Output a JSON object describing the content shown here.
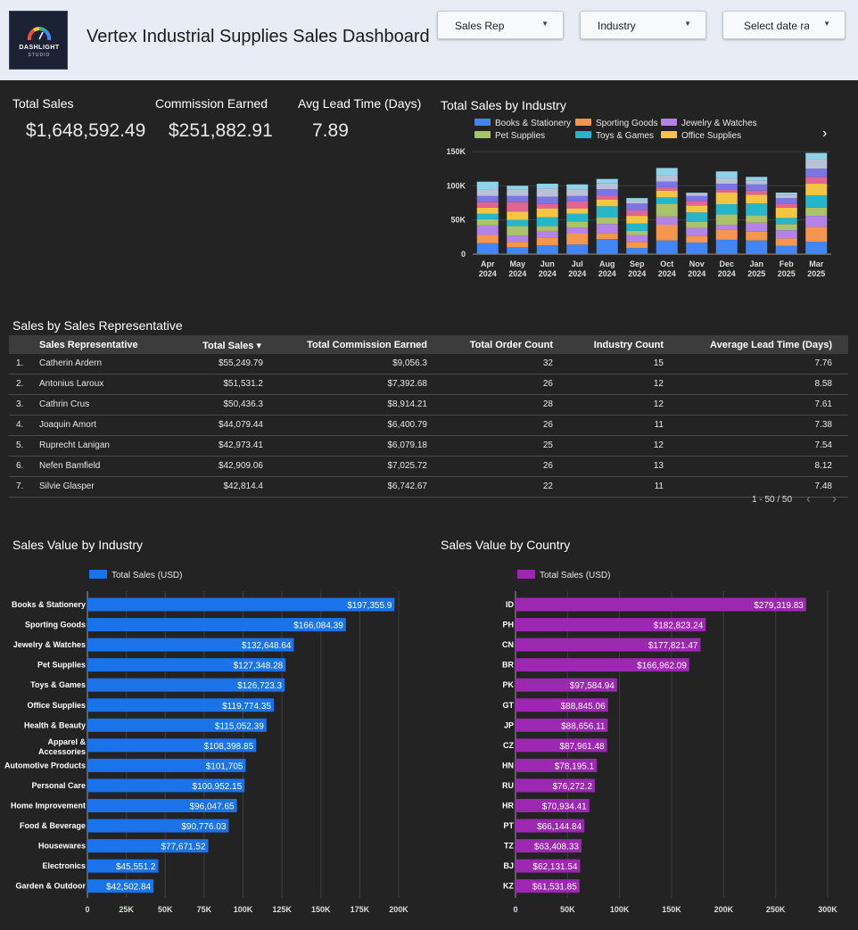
{
  "header": {
    "logo_line1": "DASHLIGHT",
    "logo_line2": "STUDIO",
    "title": "Vertex Industrial Supplies Sales Dashboard",
    "filters": [
      {
        "label": "Sales Rep"
      },
      {
        "label": "Industry"
      },
      {
        "label": "Select date range"
      }
    ]
  },
  "kpis": [
    {
      "label": "Total Sales",
      "value": "$1,648,592.49"
    },
    {
      "label": "Commission Earned",
      "value": "$251,882.91"
    },
    {
      "label": "Avg Lead Time (Days)",
      "value": "7.89"
    }
  ],
  "stacked_chart": {
    "title": "Total Sales by Industry",
    "legend": [
      {
        "name": "Books & Stationery",
        "color": "#4285f4"
      },
      {
        "name": "Sporting Goods",
        "color": "#f5964f"
      },
      {
        "name": "Jewelry & Watches",
        "color": "#b582e8"
      },
      {
        "name": "Pet Supplies",
        "color": "#aac26a"
      },
      {
        "name": "Toys & Games",
        "color": "#26b6c9"
      },
      {
        "name": "Office Supplies",
        "color": "#f4c542"
      }
    ],
    "legend_next_icon": "›"
  },
  "table": {
    "title": "Sales by Sales Representative",
    "columns": [
      "Sales Representative",
      "Total Sales ▾",
      "Total Commission Earned",
      "Total Order Count",
      "Industry Count",
      "Average Lead Time (Days)"
    ],
    "rows": [
      [
        "1.",
        "Catherin Ardern",
        "$55,249.79",
        "$9,056.3",
        "32",
        "15",
        "7.76"
      ],
      [
        "2.",
        "Antonius Laroux",
        "$51,531.2",
        "$7,392.68",
        "26",
        "12",
        "8.58"
      ],
      [
        "3.",
        "Cathrin Crus",
        "$50,436.3",
        "$8,914.21",
        "28",
        "12",
        "7.61"
      ],
      [
        "4.",
        "Joaquin Amort",
        "$44,079.44",
        "$6,400.79",
        "26",
        "11",
        "7.38"
      ],
      [
        "5.",
        "Ruprecht Lanigan",
        "$42,973.41",
        "$6,079.18",
        "25",
        "12",
        "7.54"
      ],
      [
        "6.",
        "Nefen Bamfield",
        "$42,909.06",
        "$7,025.72",
        "26",
        "13",
        "8.12"
      ],
      [
        "7.",
        "Silvie Glasper",
        "$42,814.4",
        "$6,742.67",
        "22",
        "11",
        "7.48"
      ]
    ],
    "pagination": "1 - 50 / 50",
    "prev_icon": "‹",
    "next_icon": "›"
  },
  "chart_data": [
    {
      "type": "bar",
      "stacked": true,
      "title": "Total Sales by Industry",
      "categories": [
        "Apr 2024",
        "May 2024",
        "Jun 2024",
        "Jul 2024",
        "Aug 2024",
        "Sep 2024",
        "Oct 2024",
        "Nov 2024",
        "Dec 2024",
        "Jan 2025",
        "Feb 2025",
        "Mar 2025"
      ],
      "yticks": [
        "0",
        "50K",
        "100K",
        "150K"
      ],
      "ylim": [
        0,
        150000
      ],
      "series": [
        {
          "name": "Books & Stationery",
          "color": "#4285f4",
          "values": [
            16000,
            10000,
            13000,
            14000,
            22000,
            9000,
            20000,
            17000,
            21000,
            20000,
            12000,
            18000
          ]
        },
        {
          "name": "Sporting Goods",
          "color": "#f5964f",
          "values": [
            12000,
            8000,
            11000,
            16000,
            9000,
            9000,
            23000,
            10000,
            15000,
            13000,
            11000,
            22000
          ]
        },
        {
          "name": "Jewelry & Watches",
          "color": "#b582e8",
          "values": [
            14000,
            9000,
            10000,
            9000,
            13000,
            10000,
            12000,
            11000,
            7000,
            13000,
            12000,
            16000
          ]
        },
        {
          "name": "Pet Supplies",
          "color": "#aac26a",
          "values": [
            9000,
            14000,
            7000,
            9000,
            10000,
            6000,
            19000,
            9000,
            15000,
            11000,
            9000,
            12000
          ]
        },
        {
          "name": "Toys & Games",
          "color": "#26b6c9",
          "values": [
            8000,
            9000,
            13000,
            11000,
            16000,
            11000,
            9000,
            14000,
            15000,
            17000,
            9000,
            18000
          ]
        },
        {
          "name": "Office Supplies",
          "color": "#f4c542",
          "values": [
            9000,
            12000,
            13000,
            8000,
            10000,
            11000,
            10000,
            10000,
            17000,
            13000,
            15000,
            17000
          ]
        },
        {
          "name": "",
          "color": "#e06591",
          "values": [
            8000,
            14000,
            7000,
            10000,
            6000,
            8000,
            5000,
            7000,
            5000,
            6000,
            6000,
            10000
          ]
        },
        {
          "name": "",
          "color": "#7b75e6",
          "values": [
            9000,
            9000,
            10000,
            8000,
            9000,
            10000,
            8000,
            7000,
            8000,
            9000,
            8000,
            12000
          ]
        },
        {
          "name": "",
          "color": "#b8c1d6",
          "values": [
            9000,
            10000,
            12000,
            10000,
            9000,
            5000,
            10000,
            4000,
            8000,
            6000,
            5000,
            14000
          ]
        },
        {
          "name": "",
          "color": "#8dd3ec",
          "values": [
            12000,
            5000,
            7000,
            7000,
            6000,
            3000,
            10000,
            1000,
            10000,
            5000,
            3000,
            9000
          ]
        }
      ]
    },
    {
      "type": "bar",
      "orientation": "horizontal",
      "title": "Sales Value by Industry",
      "legend": [
        "Total Sales (USD)"
      ],
      "color": "#1a73e8",
      "categories": [
        "Books & Stationery",
        "Sporting Goods",
        "Jewelry & Watches",
        "Pet Supplies",
        "Toys & Games",
        "Office Supplies",
        "Health & Beauty",
        "Apparel & Accessories",
        "Automotive Products",
        "Personal Care",
        "Home Improvement",
        "Food & Beverage",
        "Housewares",
        "Electronics",
        "Garden & Outdoor"
      ],
      "values": [
        197355.9,
        166084.39,
        132648.64,
        127348.28,
        126723.3,
        119774.35,
        115052.39,
        108398.85,
        101705,
        100952.15,
        96047.65,
        90776.03,
        77671.52,
        45551.2,
        42502.84
      ],
      "value_labels": [
        "$197,355.9",
        "$166,084.39",
        "$132,648.64",
        "$127,348.28",
        "$126,723.3",
        "$119,774.35",
        "$115,052.39",
        "$108,398.85",
        "$101,705",
        "$100,952.15",
        "$96,047.65",
        "$90,776.03",
        "$77,671.52",
        "$45,551.2",
        "$42,502.84"
      ],
      "xticks": [
        "0",
        "25K",
        "50K",
        "75K",
        "100K",
        "125K",
        "150K",
        "175K",
        "200K"
      ],
      "xlim": [
        0,
        200000
      ]
    },
    {
      "type": "bar",
      "orientation": "horizontal",
      "title": "Sales Value by Country",
      "legend": [
        "Total Sales (USD)"
      ],
      "color": "#9c27b0",
      "categories": [
        "ID",
        "PH",
        "CN",
        "BR",
        "PK",
        "GT",
        "JP",
        "CZ",
        "HN",
        "RU",
        "HR",
        "PT",
        "TZ",
        "BJ",
        "KZ"
      ],
      "values": [
        279319.83,
        182823.24,
        177821.47,
        166962.09,
        97584.94,
        88845.06,
        88656.11,
        87961.48,
        78195.1,
        76272.2,
        70934.41,
        66144.84,
        63408.33,
        62131.54,
        61531.85
      ],
      "value_labels": [
        "$279,319.83",
        "$182,823.24",
        "$177,821.47",
        "$166,962.09",
        "$97,584.94",
        "$88,845.06",
        "$88,656.11",
        "$87,961.48",
        "$78,195.1",
        "$76,272.2",
        "$70,934.41",
        "$66,144.84",
        "$63,408.33",
        "$62,131.54",
        "$61,531.85"
      ],
      "xticks": [
        "0",
        "50K",
        "100K",
        "150K",
        "200K",
        "250K",
        "300K"
      ],
      "xlim": [
        0,
        300000
      ]
    }
  ]
}
